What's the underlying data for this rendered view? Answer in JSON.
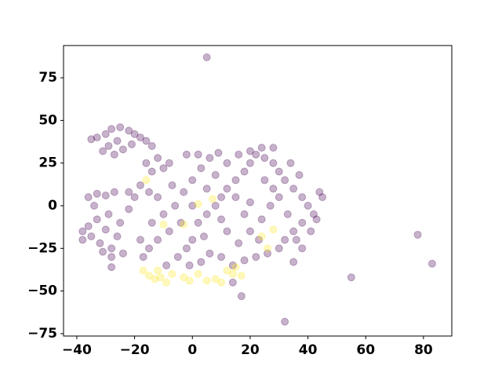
{
  "chart_data": {
    "type": "scatter",
    "xlim": [
      -44.6,
      89.8
    ],
    "ylim": [
      -76.4,
      93.9
    ],
    "xticks": [
      {
        "value": -40,
        "label": "−40"
      },
      {
        "value": -20,
        "label": "−20"
      },
      0,
      20,
      40,
      60,
      80
    ],
    "yticks": [
      {
        "value": -75,
        "label": "−75"
      },
      {
        "value": -50,
        "label": "−50"
      },
      {
        "value": -25,
        "label": "−25"
      },
      0,
      25,
      50,
      75
    ],
    "grid": false,
    "series": [
      {
        "color": "#440154",
        "x": [
          -33,
          -30,
          -28,
          -25,
          -22,
          -20,
          -18,
          -16,
          -26,
          -29,
          -31,
          -24,
          -21,
          -27,
          -14,
          -35,
          -38,
          -36,
          -35,
          -33,
          -32,
          -30,
          -29,
          -28,
          -34,
          -36,
          -33,
          -30,
          -27,
          -25,
          -26,
          -24,
          -31,
          -28,
          -38,
          -22,
          -12,
          -10,
          -14,
          -16,
          -8,
          -18,
          -20,
          -22,
          -15,
          -12,
          -10,
          -8,
          -12,
          -15,
          -5,
          -2,
          0,
          2,
          5,
          8,
          10,
          12,
          15,
          18,
          20,
          22,
          25,
          28,
          30,
          32,
          35,
          38,
          40,
          42,
          38,
          35,
          32,
          30,
          26,
          22,
          18,
          14,
          10,
          6,
          3,
          -1,
          -4,
          -6,
          -3,
          0,
          3,
          6,
          9,
          12,
          15,
          18,
          20,
          24,
          27,
          30,
          33,
          36,
          38,
          41,
          43,
          45,
          44,
          -2,
          2,
          -9,
          -17,
          -18,
          -14,
          0,
          5,
          8,
          12,
          16,
          20,
          25,
          28,
          23,
          10,
          34,
          37,
          4,
          -7,
          24,
          28,
          20,
          16,
          5,
          78,
          83,
          55,
          32,
          17,
          35,
          14,
          -28
        ],
        "y": [
          40,
          42,
          45,
          46,
          44,
          42,
          40,
          38,
          38,
          35,
          32,
          33,
          36,
          30,
          35,
          39,
          -15,
          -12,
          -18,
          -8,
          -22,
          -14,
          -5,
          -25,
          0,
          5,
          7,
          6,
          8,
          -10,
          -18,
          -28,
          -27,
          -30,
          -20,
          -2,
          28,
          22,
          20,
          25,
          25,
          12,
          5,
          8,
          8,
          5,
          -5,
          -15,
          -20,
          -25,
          -30,
          -25,
          -20,
          -10,
          -5,
          0,
          5,
          10,
          15,
          20,
          25,
          30,
          28,
          25,
          20,
          15,
          10,
          5,
          0,
          -5,
          -10,
          -15,
          -20,
          -25,
          -28,
          -30,
          -32,
          -35,
          -30,
          -28,
          -33,
          -35,
          -10,
          0,
          8,
          15,
          22,
          28,
          31,
          25,
          5,
          -5,
          -15,
          -8,
          0,
          5,
          -5,
          -20,
          -25,
          -15,
          -8,
          5,
          8,
          30,
          30,
          -35,
          -30,
          -20,
          -10,
          0,
          10,
          18,
          -15,
          -22,
          2,
          15,
          10,
          -20,
          -8,
          25,
          18,
          -18,
          12,
          34,
          34,
          32,
          30,
          87,
          -17,
          -34,
          -42,
          -68,
          -53,
          -33,
          -45,
          -36
        ]
      },
      {
        "color": "#fde725",
        "x": [
          -17,
          -15,
          -13,
          -11,
          -9,
          -7,
          -12,
          -3,
          -1,
          2,
          5,
          8,
          10,
          12,
          14,
          17,
          15,
          2,
          -10,
          -3,
          24,
          28,
          -16,
          7,
          26
        ],
        "y": [
          -38,
          -41,
          -43,
          -42,
          -45,
          -40,
          -38,
          -42,
          -44,
          -40,
          -44,
          -43,
          -45,
          -38,
          -40,
          -41,
          -36,
          1,
          -11,
          -11,
          -18,
          -14,
          15,
          4,
          -25
        ]
      }
    ]
  }
}
